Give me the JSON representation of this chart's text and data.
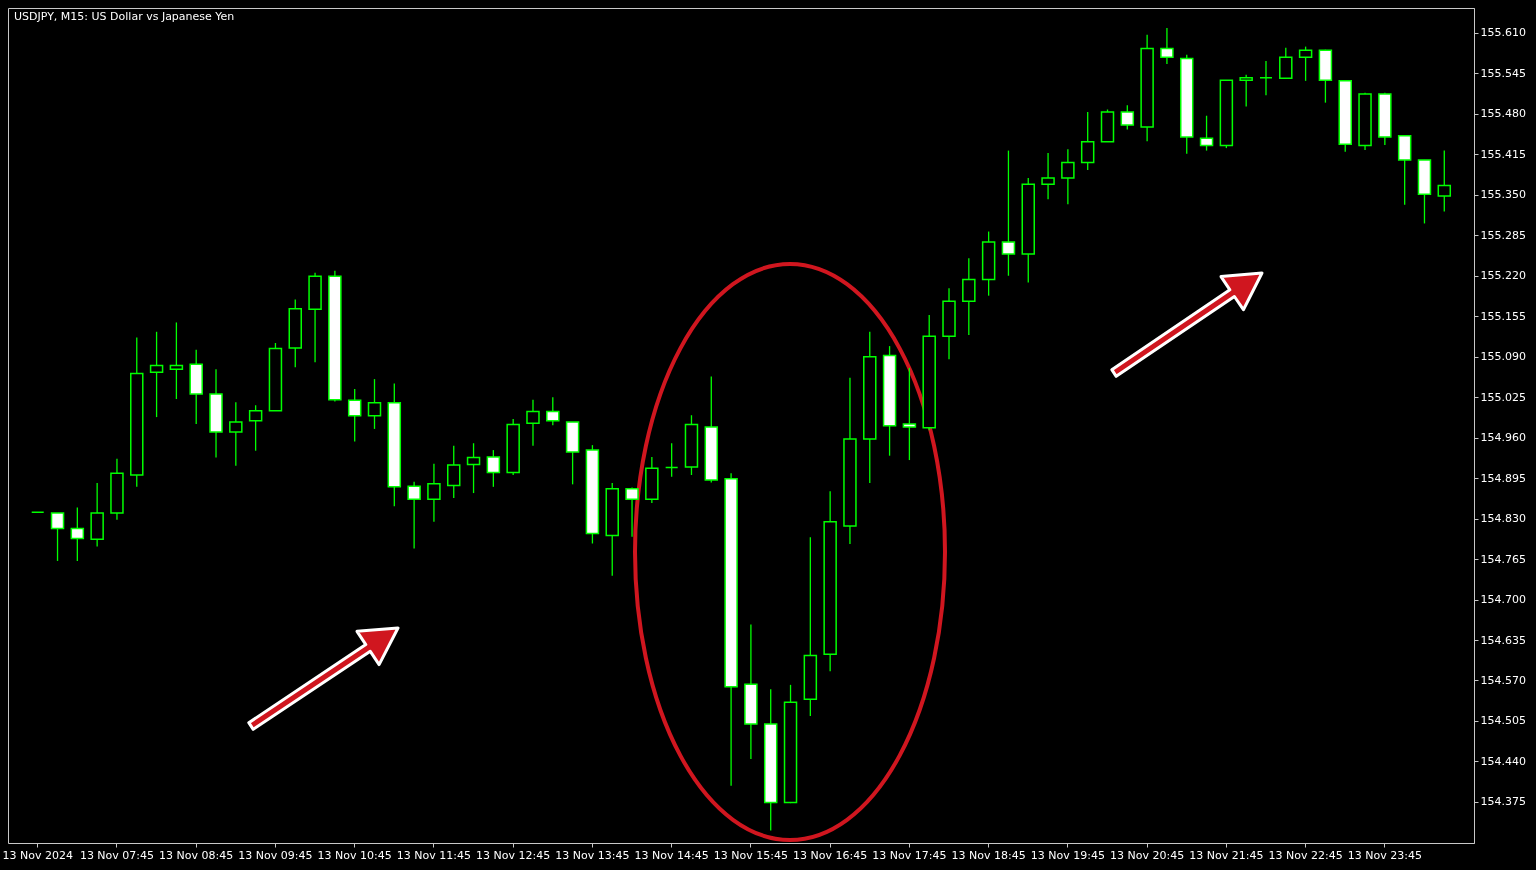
{
  "chart_data": {
    "type": "candlestick",
    "title": "USDJPY, M15: US Dollar vs Japanese Yen",
    "color": "#00ff00",
    "categories": [
      "13 Nov 2024",
      null,
      null,
      null,
      "13 Nov 07:45",
      null,
      null,
      null,
      "13 Nov 08:45",
      null,
      null,
      null,
      "13 Nov 09:45",
      null,
      null,
      null,
      "13 Nov 10:45",
      null,
      null,
      null,
      "13 Nov 11:45",
      null,
      null,
      null,
      "13 Nov 12:45",
      null,
      null,
      null,
      "13 Nov 13:45",
      null,
      null,
      null,
      "13 Nov 14:45",
      null,
      null,
      null,
      "13 Nov 15:45",
      null,
      null,
      null,
      "13 Nov 16:45",
      null,
      null,
      null,
      "13 Nov 17:45",
      null,
      null,
      null,
      "13 Nov 18:45",
      null,
      null,
      null,
      "13 Nov 19:45",
      null,
      null,
      null,
      "13 Nov 20:45",
      null,
      null,
      null,
      "13 Nov 21:45",
      null,
      null,
      null,
      "13 Nov 22:45",
      null,
      null,
      null,
      "13 Nov 23:45",
      null,
      null,
      null
    ],
    "ohlc": [
      [
        154.84,
        154.84,
        154.84,
        154.84
      ],
      [
        154.839,
        154.839,
        154.762,
        154.814
      ],
      [
        154.814,
        154.848,
        154.762,
        154.798
      ],
      [
        154.797,
        154.887,
        154.785,
        154.839
      ],
      [
        154.839,
        154.926,
        154.828,
        154.903
      ],
      [
        154.9,
        155.121,
        154.881,
        155.063
      ],
      [
        155.065,
        155.13,
        154.993,
        155.076
      ],
      [
        155.07,
        155.145,
        155.022,
        155.076
      ],
      [
        155.078,
        155.101,
        154.982,
        155.03
      ],
      [
        155.03,
        155.07,
        154.928,
        154.969
      ],
      [
        154.969,
        155.017,
        154.915,
        154.985
      ],
      [
        154.987,
        155.012,
        154.939,
        155.003
      ],
      [
        155.003,
        155.112,
        155.003,
        155.103
      ],
      [
        155.104,
        155.182,
        155.073,
        155.167
      ],
      [
        155.166,
        155.225,
        155.081,
        155.219
      ],
      [
        155.219,
        155.228,
        155.018,
        155.021
      ],
      [
        155.02,
        155.038,
        154.954,
        154.995
      ],
      [
        154.995,
        155.054,
        154.974,
        155.016
      ],
      [
        155.016,
        155.047,
        154.85,
        154.881
      ],
      [
        154.882,
        154.889,
        154.782,
        154.861
      ],
      [
        154.861,
        154.918,
        154.825,
        154.886
      ],
      [
        154.883,
        154.947,
        154.863,
        154.916
      ],
      [
        154.917,
        154.951,
        154.871,
        154.928
      ],
      [
        154.929,
        154.94,
        154.881,
        154.904
      ],
      [
        154.904,
        154.99,
        154.9,
        154.981
      ],
      [
        154.983,
        155.021,
        154.947,
        155.002
      ],
      [
        155.002,
        155.025,
        154.98,
        154.987
      ],
      [
        154.985,
        154.985,
        154.885,
        154.937
      ],
      [
        154.94,
        154.948,
        154.79,
        154.806
      ],
      [
        154.803,
        154.887,
        154.738,
        154.878
      ],
      [
        154.878,
        154.88,
        154.801,
        154.861
      ],
      [
        154.861,
        154.929,
        154.855,
        154.911
      ],
      [
        154.912,
        154.951,
        154.897,
        154.912
      ],
      [
        154.913,
        154.996,
        154.9,
        154.981
      ],
      [
        154.977,
        155.058,
        154.888,
        154.892
      ],
      [
        154.894,
        154.903,
        154.401,
        154.56
      ],
      [
        154.564,
        154.66,
        154.444,
        154.5
      ],
      [
        154.5,
        154.556,
        154.329,
        154.374
      ],
      [
        154.374,
        154.563,
        154.373,
        154.535
      ],
      [
        154.54,
        154.8,
        154.513,
        154.61
      ],
      [
        154.612,
        154.874,
        154.585,
        154.825
      ],
      [
        154.818,
        155.056,
        154.789,
        154.958
      ],
      [
        154.958,
        155.13,
        154.887,
        155.09
      ],
      [
        155.092,
        155.107,
        154.931,
        154.979
      ],
      [
        154.982,
        155.072,
        154.924,
        154.977
      ],
      [
        154.976,
        155.157,
        154.972,
        155.123
      ],
      [
        155.123,
        155.2,
        155.086,
        155.179
      ],
      [
        155.179,
        155.248,
        155.125,
        155.214
      ],
      [
        155.214,
        155.291,
        155.188,
        155.274
      ],
      [
        155.274,
        155.421,
        155.22,
        155.255
      ],
      [
        155.255,
        155.377,
        155.209,
        155.367
      ],
      [
        155.367,
        155.417,
        155.343,
        155.377
      ],
      [
        155.377,
        155.423,
        155.335,
        155.402
      ],
      [
        155.402,
        155.483,
        155.39,
        155.435
      ],
      [
        155.435,
        155.487,
        155.435,
        155.483
      ],
      [
        155.483,
        155.494,
        155.455,
        155.462
      ],
      [
        155.459,
        155.607,
        155.436,
        155.585
      ],
      [
        155.585,
        155.618,
        155.56,
        155.571
      ],
      [
        155.569,
        155.575,
        155.416,
        155.443
      ],
      [
        155.441,
        155.477,
        155.421,
        155.429
      ],
      [
        155.429,
        155.534,
        155.425,
        155.534
      ],
      [
        155.534,
        155.543,
        155.492,
        155.538
      ],
      [
        155.538,
        155.565,
        155.51,
        155.538
      ],
      [
        155.537,
        155.586,
        155.536,
        155.571
      ],
      [
        155.571,
        155.588,
        155.533,
        155.582
      ],
      [
        155.582,
        155.583,
        155.498,
        155.534
      ],
      [
        155.533,
        155.533,
        155.419,
        155.431
      ],
      [
        155.429,
        155.514,
        155.422,
        155.512
      ],
      [
        155.512,
        155.514,
        155.43,
        155.443
      ],
      [
        155.445,
        155.445,
        155.334,
        155.406
      ],
      [
        155.406,
        155.406,
        155.304,
        155.351
      ],
      [
        155.348,
        155.421,
        155.323,
        155.365
      ]
    ],
    "ylim": [
      154.309,
      155.65
    ],
    "yticks": [
      154.375,
      {
        "value": 154.44,
        "label": "154.440"
      },
      154.505,
      {
        "value": 154.57,
        "label": "154.570"
      },
      154.635,
      {
        "value": 154.7,
        "label": "154.700"
      },
      154.765,
      {
        "value": 154.83,
        "label": "154.830"
      },
      154.895,
      {
        "value": 154.96,
        "label": "154.960"
      },
      155.025,
      {
        "value": 155.09,
        "label": "155.090"
      },
      155.155,
      {
        "value": 155.22,
        "label": "155.220"
      },
      155.285,
      {
        "value": 155.35,
        "label": "155.350"
      },
      155.415,
      {
        "value": 155.48,
        "label": "155.480"
      },
      155.545,
      {
        "value": 155.61,
        "label": "155.610"
      }
    ]
  }
}
